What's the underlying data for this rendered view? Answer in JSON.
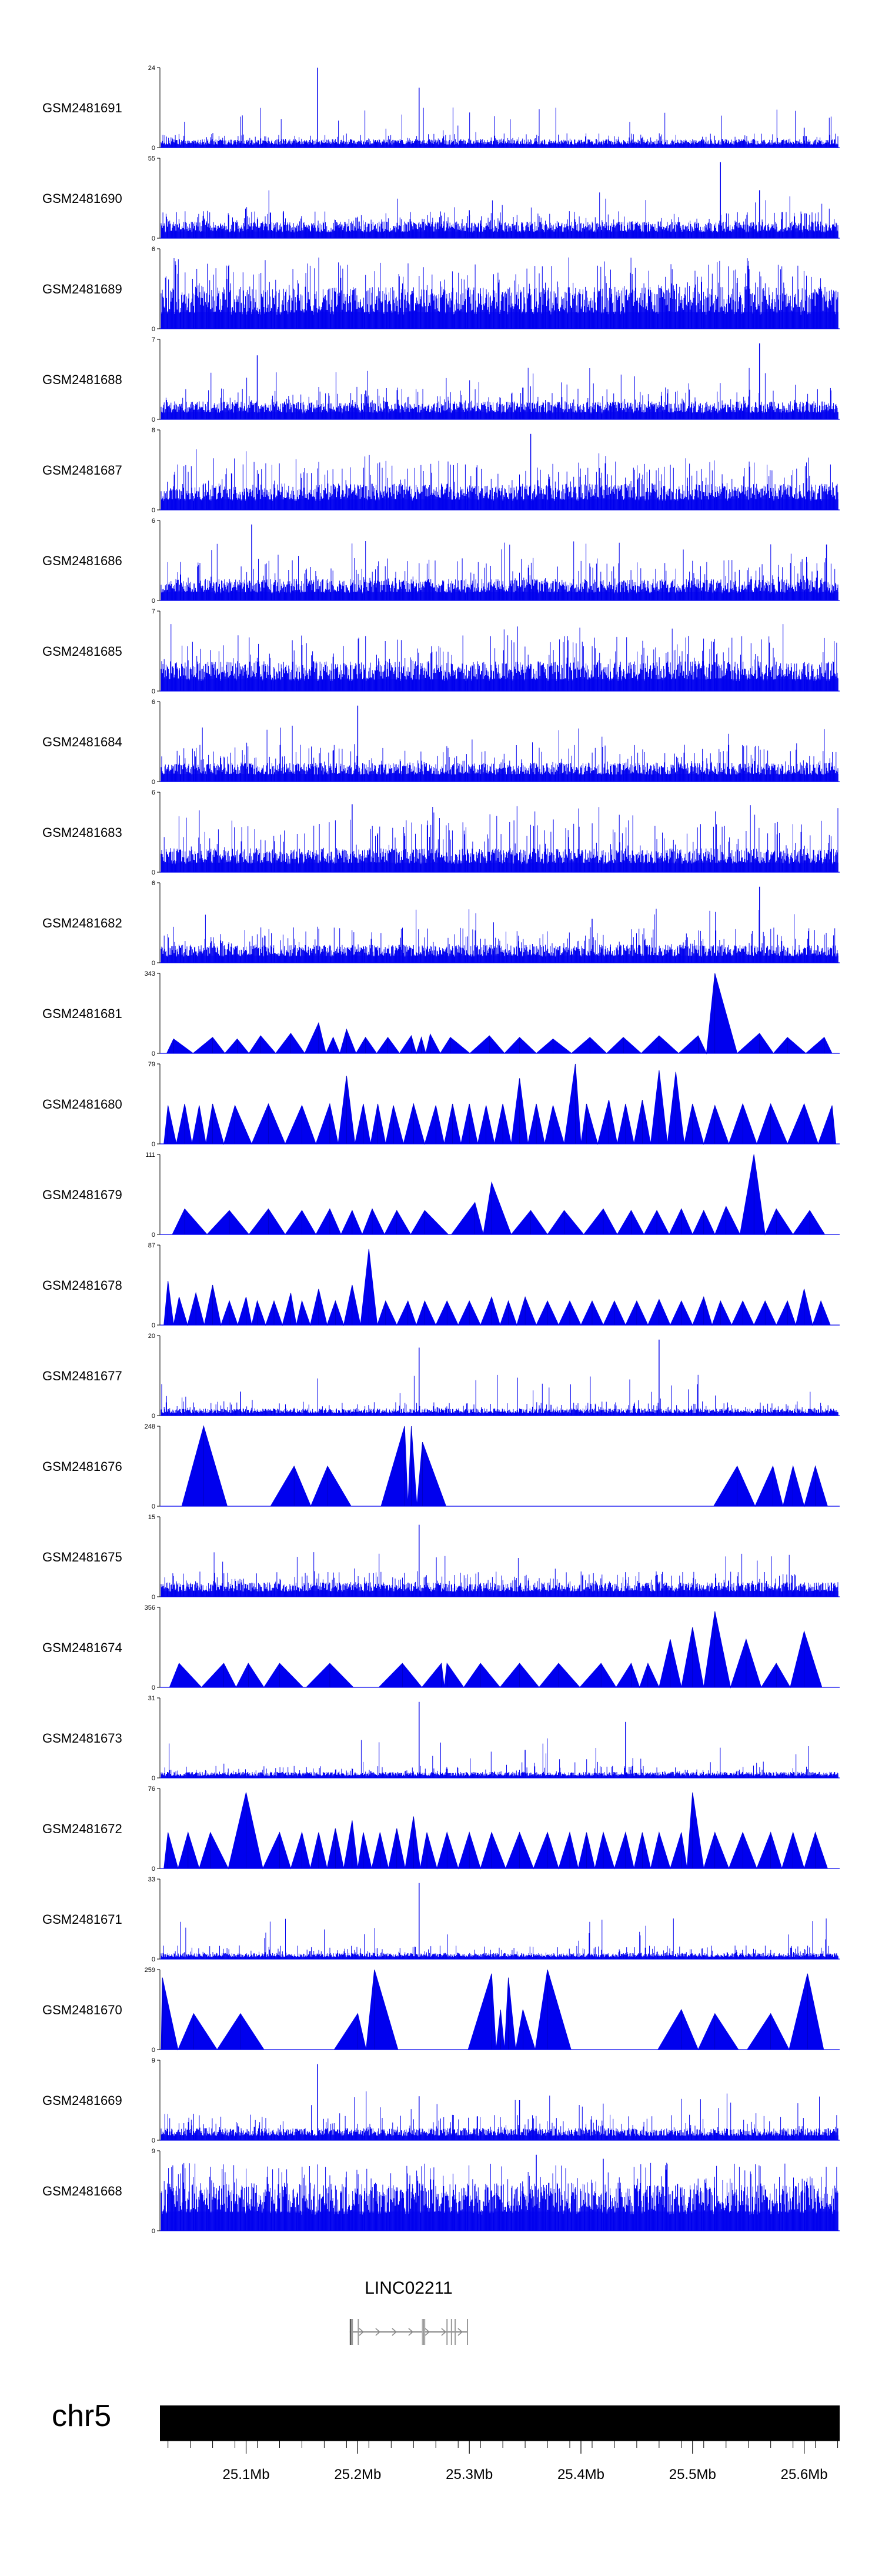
{
  "chart_data": {
    "type": "genome-track-plot",
    "chromosome": "chr5",
    "x_range_mb": [
      25.0228,
      25.6318
    ],
    "x_ticks": [
      {
        "pos": 25.1,
        "label": "25.1Mb"
      },
      {
        "pos": 25.2,
        "label": "25.2Mb"
      },
      {
        "pos": 25.3,
        "label": "25.3Mb"
      },
      {
        "pos": 25.4,
        "label": "25.4Mb"
      },
      {
        "pos": 25.5,
        "label": "25.5Mb"
      },
      {
        "pos": 25.6,
        "label": "25.6Mb"
      }
    ],
    "series_color": "#0000ee",
    "tracks": [
      {
        "name": "GSM2481691",
        "ymin": "0",
        "ymax": "24",
        "style": "bars",
        "base": 0.07,
        "noise": 0.11,
        "spikes": [
          [
            25.164,
            1.0
          ],
          [
            25.255,
            0.75
          ],
          [
            25.6,
            0.25
          ]
        ],
        "seed": 11
      },
      {
        "name": "GSM2481690",
        "ymin": "0",
        "ymax": "55",
        "style": "bars",
        "base": 0.14,
        "noise": 0.2,
        "spikes": [
          [
            25.525,
            0.95
          ],
          [
            25.56,
            0.6
          ],
          [
            25.3,
            0.35
          ]
        ],
        "seed": 12
      },
      {
        "name": "GSM2481689",
        "ymin": "0",
        "ymax": "6",
        "style": "bars",
        "base": 0.35,
        "noise": 0.5,
        "spikes": [],
        "seed": 13
      },
      {
        "name": "GSM2481688",
        "ymin": "0",
        "ymax": "7",
        "style": "bars",
        "base": 0.15,
        "noise": 0.25,
        "spikes": [
          [
            25.56,
            0.95
          ],
          [
            25.11,
            0.8
          ]
        ],
        "seed": 14
      },
      {
        "name": "GSM2481687",
        "ymin": "0",
        "ymax": "8",
        "style": "bars",
        "base": 0.22,
        "noise": 0.4,
        "spikes": [
          [
            25.355,
            0.95
          ]
        ],
        "seed": 15
      },
      {
        "name": "GSM2481686",
        "ymin": "0",
        "ymax": "6",
        "style": "bars",
        "base": 0.18,
        "noise": 0.35,
        "spikes": [
          [
            25.105,
            0.95
          ],
          [
            25.62,
            0.7
          ]
        ],
        "seed": 16
      },
      {
        "name": "GSM2481685",
        "ymin": "0",
        "ymax": "7",
        "style": "bars",
        "base": 0.25,
        "noise": 0.45,
        "spikes": [],
        "seed": 17
      },
      {
        "name": "GSM2481684",
        "ymin": "0",
        "ymax": "6",
        "style": "bars",
        "base": 0.16,
        "noise": 0.3,
        "spikes": [
          [
            25.2,
            0.95
          ]
        ],
        "seed": 18
      },
      {
        "name": "GSM2481683",
        "ymin": "0",
        "ymax": "6",
        "style": "bars",
        "base": 0.2,
        "noise": 0.45,
        "spikes": [
          [
            25.195,
            0.85
          ]
        ],
        "seed": 19
      },
      {
        "name": "GSM2481682",
        "ymin": "0",
        "ymax": "6",
        "style": "bars",
        "base": 0.15,
        "noise": 0.3,
        "spikes": [
          [
            25.56,
            0.95
          ],
          [
            25.41,
            0.55
          ]
        ],
        "seed": 20
      },
      {
        "name": "GSM2481681",
        "ymin": "0",
        "ymax": "343",
        "style": "triangles",
        "peaks": [
          [
            25.035,
            0.18
          ],
          [
            25.07,
            0.2
          ],
          [
            25.092,
            0.18
          ],
          [
            25.113,
            0.22
          ],
          [
            25.14,
            0.25
          ],
          [
            25.165,
            0.38
          ],
          [
            25.178,
            0.2
          ],
          [
            25.19,
            0.3
          ],
          [
            25.207,
            0.2
          ],
          [
            25.227,
            0.2
          ],
          [
            25.248,
            0.22
          ],
          [
            25.257,
            0.2
          ],
          [
            25.265,
            0.24
          ],
          [
            25.283,
            0.2
          ],
          [
            25.318,
            0.22
          ],
          [
            25.345,
            0.2
          ],
          [
            25.375,
            0.18
          ],
          [
            25.408,
            0.2
          ],
          [
            25.438,
            0.2
          ],
          [
            25.47,
            0.22
          ],
          [
            25.505,
            0.22
          ],
          [
            25.52,
            1.0
          ],
          [
            25.56,
            0.25
          ],
          [
            25.585,
            0.2
          ],
          [
            25.618,
            0.2
          ]
        ],
        "seed": 21
      },
      {
        "name": "GSM2481680",
        "ymin": "0",
        "ymax": "79",
        "style": "triangles",
        "peaks": [
          [
            25.03,
            0.48
          ],
          [
            25.045,
            0.5
          ],
          [
            25.058,
            0.48
          ],
          [
            25.07,
            0.5
          ],
          [
            25.09,
            0.48
          ],
          [
            25.12,
            0.5
          ],
          [
            25.15,
            0.48
          ],
          [
            25.175,
            0.5
          ],
          [
            25.19,
            0.85
          ],
          [
            25.205,
            0.5
          ],
          [
            25.218,
            0.5
          ],
          [
            25.232,
            0.48
          ],
          [
            25.25,
            0.5
          ],
          [
            25.27,
            0.48
          ],
          [
            25.285,
            0.5
          ],
          [
            25.3,
            0.5
          ],
          [
            25.315,
            0.48
          ],
          [
            25.33,
            0.5
          ],
          [
            25.345,
            0.82
          ],
          [
            25.36,
            0.5
          ],
          [
            25.375,
            0.48
          ],
          [
            25.395,
            1.0
          ],
          [
            25.405,
            0.5
          ],
          [
            25.425,
            0.55
          ],
          [
            25.44,
            0.5
          ],
          [
            25.455,
            0.55
          ],
          [
            25.47,
            0.92
          ],
          [
            25.485,
            0.9
          ],
          [
            25.5,
            0.5
          ],
          [
            25.52,
            0.48
          ],
          [
            25.545,
            0.5
          ],
          [
            25.57,
            0.5
          ],
          [
            25.6,
            0.5
          ],
          [
            25.625,
            0.48
          ]
        ],
        "seed": 22
      },
      {
        "name": "GSM2481679",
        "ymin": "0",
        "ymax": "111",
        "style": "triangles",
        "peaks": [
          [
            25.045,
            0.32
          ],
          [
            25.085,
            0.3
          ],
          [
            25.12,
            0.32
          ],
          [
            25.15,
            0.3
          ],
          [
            25.175,
            0.32
          ],
          [
            25.195,
            0.3
          ],
          [
            25.213,
            0.32
          ],
          [
            25.235,
            0.3
          ],
          [
            25.26,
            0.3
          ],
          [
            25.305,
            0.4
          ],
          [
            25.32,
            0.65
          ],
          [
            25.355,
            0.3
          ],
          [
            25.385,
            0.3
          ],
          [
            25.42,
            0.32
          ],
          [
            25.445,
            0.3
          ],
          [
            25.468,
            0.3
          ],
          [
            25.49,
            0.32
          ],
          [
            25.51,
            0.3
          ],
          [
            25.53,
            0.35
          ],
          [
            25.555,
            1.0
          ],
          [
            25.575,
            0.32
          ],
          [
            25.605,
            0.3
          ]
        ],
        "seed": 23
      },
      {
        "name": "GSM2481678",
        "ymin": "0",
        "ymax": "87",
        "style": "triangles",
        "peaks": [
          [
            25.03,
            0.55
          ],
          [
            25.04,
            0.35
          ],
          [
            25.055,
            0.4
          ],
          [
            25.07,
            0.5
          ],
          [
            25.085,
            0.3
          ],
          [
            25.1,
            0.35
          ],
          [
            25.11,
            0.3
          ],
          [
            25.125,
            0.3
          ],
          [
            25.14,
            0.4
          ],
          [
            25.15,
            0.3
          ],
          [
            25.165,
            0.45
          ],
          [
            25.18,
            0.3
          ],
          [
            25.195,
            0.5
          ],
          [
            25.21,
            0.95
          ],
          [
            25.225,
            0.3
          ],
          [
            25.245,
            0.3
          ],
          [
            25.26,
            0.3
          ],
          [
            25.28,
            0.3
          ],
          [
            25.3,
            0.3
          ],
          [
            25.32,
            0.35
          ],
          [
            25.335,
            0.3
          ],
          [
            25.35,
            0.35
          ],
          [
            25.37,
            0.3
          ],
          [
            25.39,
            0.3
          ],
          [
            25.41,
            0.3
          ],
          [
            25.43,
            0.3
          ],
          [
            25.45,
            0.3
          ],
          [
            25.47,
            0.32
          ],
          [
            25.49,
            0.3
          ],
          [
            25.51,
            0.35
          ],
          [
            25.525,
            0.3
          ],
          [
            25.545,
            0.3
          ],
          [
            25.565,
            0.3
          ],
          [
            25.585,
            0.3
          ],
          [
            25.6,
            0.45
          ],
          [
            25.615,
            0.3
          ]
        ],
        "seed": 24
      },
      {
        "name": "GSM2481677",
        "ymin": "0",
        "ymax": "20",
        "style": "bars",
        "base": 0.06,
        "noise": 0.12,
        "spikes": [
          [
            25.255,
            0.85
          ],
          [
            25.47,
            0.95
          ],
          [
            25.095,
            0.3
          ]
        ],
        "seed": 25
      },
      {
        "name": "GSM2481676",
        "ymin": "0",
        "ymax": "248",
        "style": "triangles",
        "peaks": [
          [
            25.062,
            1.0
          ],
          [
            25.143,
            0.5
          ],
          [
            25.173,
            0.5
          ],
          [
            25.242,
            1.0
          ],
          [
            25.248,
            1.0
          ],
          [
            25.258,
            0.8
          ],
          [
            25.54,
            0.5
          ],
          [
            25.572,
            0.5
          ],
          [
            25.59,
            0.5
          ],
          [
            25.61,
            0.5
          ]
        ],
        "seed": 26
      },
      {
        "name": "GSM2481675",
        "ymin": "0",
        "ymax": "15",
        "style": "bars",
        "base": 0.12,
        "noise": 0.2,
        "spikes": [
          [
            25.255,
            0.9
          ]
        ],
        "seed": 27
      },
      {
        "name": "GSM2481674",
        "ymin": "0",
        "ymax": "356",
        "style": "triangles",
        "peaks": [
          [
            25.04,
            0.3
          ],
          [
            25.08,
            0.3
          ],
          [
            25.102,
            0.3
          ],
          [
            25.13,
            0.3
          ],
          [
            25.175,
            0.3
          ],
          [
            25.24,
            0.3
          ],
          [
            25.275,
            0.3
          ],
          [
            25.28,
            0.3
          ],
          [
            25.31,
            0.3
          ],
          [
            25.345,
            0.3
          ],
          [
            25.38,
            0.3
          ],
          [
            25.418,
            0.3
          ],
          [
            25.445,
            0.3
          ],
          [
            25.46,
            0.3
          ],
          [
            25.48,
            0.6
          ],
          [
            25.5,
            0.75
          ],
          [
            25.52,
            0.95
          ],
          [
            25.548,
            0.6
          ],
          [
            25.575,
            0.3
          ],
          [
            25.6,
            0.7
          ]
        ],
        "seed": 28
      },
      {
        "name": "GSM2481673",
        "ymin": "0",
        "ymax": "31",
        "style": "bars",
        "base": 0.05,
        "noise": 0.1,
        "spikes": [
          [
            25.255,
            0.95
          ],
          [
            25.44,
            0.7
          ],
          [
            25.35,
            0.35
          ]
        ],
        "seed": 29
      },
      {
        "name": "GSM2481672",
        "ymin": "0",
        "ymax": "76",
        "style": "triangles",
        "peaks": [
          [
            25.03,
            0.45
          ],
          [
            25.048,
            0.45
          ],
          [
            25.068,
            0.45
          ],
          [
            25.1,
            0.95
          ],
          [
            25.13,
            0.45
          ],
          [
            25.15,
            0.45
          ],
          [
            25.165,
            0.45
          ],
          [
            25.18,
            0.5
          ],
          [
            25.195,
            0.6
          ],
          [
            25.205,
            0.45
          ],
          [
            25.22,
            0.45
          ],
          [
            25.235,
            0.5
          ],
          [
            25.25,
            0.65
          ],
          [
            25.262,
            0.45
          ],
          [
            25.28,
            0.45
          ],
          [
            25.3,
            0.45
          ],
          [
            25.32,
            0.45
          ],
          [
            25.345,
            0.45
          ],
          [
            25.37,
            0.45
          ],
          [
            25.39,
            0.45
          ],
          [
            25.405,
            0.45
          ],
          [
            25.42,
            0.45
          ],
          [
            25.44,
            0.45
          ],
          [
            25.455,
            0.45
          ],
          [
            25.47,
            0.45
          ],
          [
            25.49,
            0.45
          ],
          [
            25.5,
            0.95
          ],
          [
            25.52,
            0.45
          ],
          [
            25.545,
            0.45
          ],
          [
            25.57,
            0.45
          ],
          [
            25.59,
            0.45
          ],
          [
            25.61,
            0.45
          ]
        ],
        "seed": 30
      },
      {
        "name": "GSM2481671",
        "ymin": "0",
        "ymax": "33",
        "style": "bars",
        "base": 0.05,
        "noise": 0.12,
        "spikes": [
          [
            25.255,
            0.95
          ]
        ],
        "seed": 31
      },
      {
        "name": "GSM2481670",
        "ymin": "0",
        "ymax": "259",
        "style": "triangles",
        "peaks": [
          [
            25.025,
            0.9
          ],
          [
            25.053,
            0.45
          ],
          [
            25.095,
            0.45
          ],
          [
            25.2,
            0.45
          ],
          [
            25.215,
            1.0
          ],
          [
            25.32,
            0.95
          ],
          [
            25.328,
            0.5
          ],
          [
            25.335,
            0.9
          ],
          [
            25.348,
            0.5
          ],
          [
            25.37,
            1.0
          ],
          [
            25.49,
            0.5
          ],
          [
            25.52,
            0.45
          ],
          [
            25.57,
            0.45
          ],
          [
            25.603,
            0.95
          ]
        ],
        "seed": 32
      },
      {
        "name": "GSM2481669",
        "ymin": "0",
        "ymax": "9",
        "style": "bars",
        "base": 0.1,
        "noise": 0.22,
        "spikes": [
          [
            25.164,
            0.95
          ],
          [
            25.255,
            0.55
          ],
          [
            25.345,
            0.5
          ]
        ],
        "seed": 33
      },
      {
        "name": "GSM2481668",
        "ymin": "0",
        "ymax": "9",
        "style": "bars",
        "base": 0.4,
        "noise": 0.45,
        "spikes": [
          [
            25.36,
            0.95
          ],
          [
            25.42,
            0.9
          ]
        ],
        "seed": 34
      }
    ],
    "gene": {
      "name": "LINC02211",
      "start": 25.1929,
      "end": 25.2984,
      "exons": [
        [
          25.1929,
          25.1935
        ],
        [
          25.1935,
          25.1957
        ],
        [
          25.2,
          25.2009
        ],
        [
          25.2585,
          25.2595
        ],
        [
          25.2795,
          25.2805
        ],
        [
          25.2835,
          25.2842
        ],
        [
          25.2868,
          25.2875
        ],
        [
          25.2978,
          25.2984
        ]
      ],
      "highlight": [
        25.2575,
        25.2605
      ]
    }
  }
}
